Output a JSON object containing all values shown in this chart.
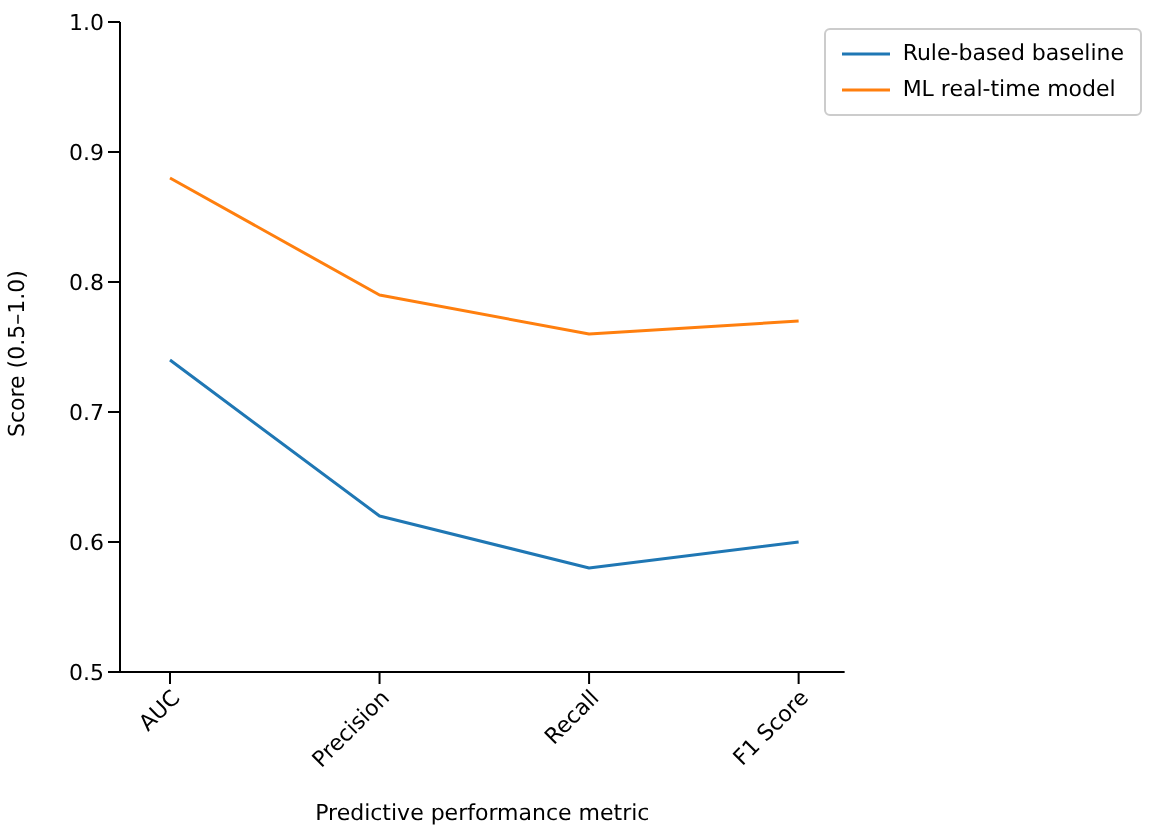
{
  "chart_data": {
    "type": "line",
    "xlabel": "Predictive performance metric",
    "ylabel": "Score (0.5–1.0)",
    "categories": [
      "AUC",
      "Precision",
      "Recall",
      "F1 Score"
    ],
    "series": [
      {
        "name": "Rule-based baseline",
        "color": "#1f77b4",
        "values": [
          0.74,
          0.62,
          0.58,
          0.6
        ]
      },
      {
        "name": "ML real-time model",
        "color": "#ff7f0e",
        "values": [
          0.88,
          0.79,
          0.76,
          0.77
        ]
      }
    ],
    "ylim": [
      0.5,
      1.0
    ],
    "yticks": [
      0.5,
      0.6,
      0.7,
      0.8,
      0.9,
      {
        "value": 1.0,
        "label": "1.0"
      }
    ],
    "grid": false,
    "legend": "top right",
    "marker": "none",
    "line_style": "solid"
  }
}
